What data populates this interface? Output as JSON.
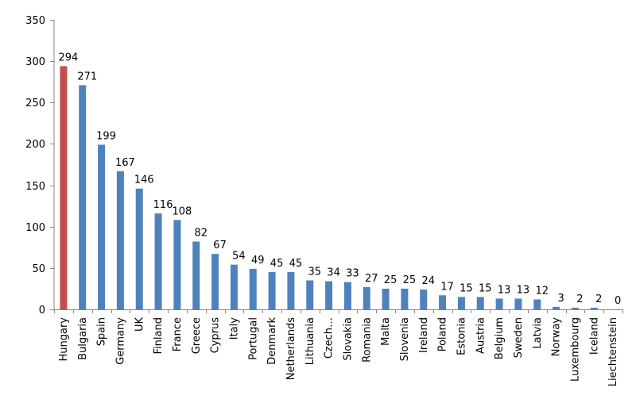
{
  "chart_data": {
    "type": "bar",
    "categories": [
      "Hungary",
      "Bulgaria",
      "Spain",
      "Germany",
      "UK",
      "Finland",
      "France",
      "Greece",
      "Cyprus",
      "Italy",
      "Portugal",
      "Denmark",
      "Netherlands",
      "Lithuania",
      "Czech…",
      "Slovakia",
      "Romania",
      "Malta",
      "Slovenia",
      "Ireland",
      "Poland",
      "Estonia",
      "Austria",
      "Belgium",
      "Sweden",
      "Latvia",
      "Norway",
      "Luxembourg",
      "Iceland",
      "Liechtenstein"
    ],
    "values": [
      294,
      271,
      199,
      167,
      146,
      116,
      108,
      82,
      67,
      54,
      49,
      45,
      45,
      35,
      34,
      33,
      27,
      25,
      25,
      24,
      17,
      15,
      15,
      13,
      13,
      12,
      3,
      2,
      2,
      0
    ],
    "highlight_index": 0,
    "colors": {
      "default": "#4f81bd",
      "highlight": "#c0504d",
      "axis": "#868686"
    },
    "ylim": [
      0,
      350
    ],
    "yticks": [
      0,
      50,
      100,
      150,
      200,
      250,
      300,
      350
    ],
    "grid": false,
    "legend": "none",
    "title": "",
    "xlabel": "",
    "ylabel": ""
  }
}
